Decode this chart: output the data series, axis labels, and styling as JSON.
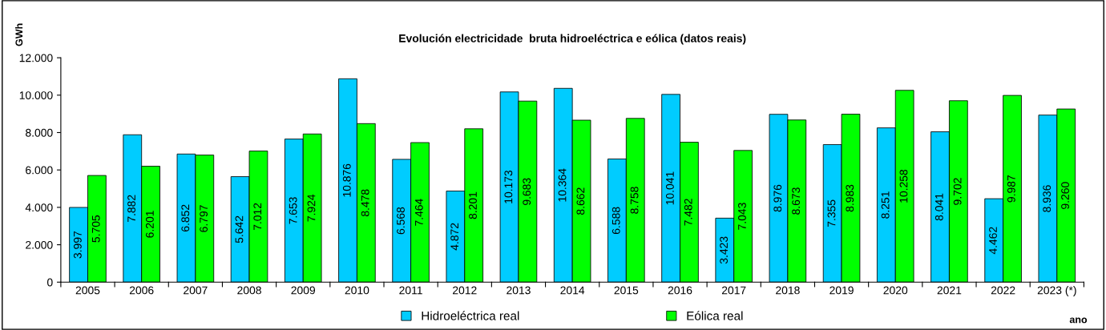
{
  "chart_data": {
    "type": "bar",
    "title": "Evolución electricidade  bruta hidroeléctrica e eólica (datos reais)",
    "xlabel": "ano",
    "ylabel": "GWh",
    "categories": [
      "2005",
      "2006",
      "2007",
      "2008",
      "2009",
      "2010",
      "2011",
      "2012",
      "2013",
      "2014",
      "2015",
      "2016",
      "2017",
      "2018",
      "2019",
      "2020",
      "2021",
      "2022",
      "2023 (*)"
    ],
    "series": [
      {
        "name": "Hidroeléctrica real",
        "color": "#00ccff",
        "values": [
          3997,
          7882,
          6852,
          5642,
          7653,
          10876,
          6568,
          4872,
          10173,
          10364,
          6588,
          10041,
          3423,
          8976,
          7355,
          8251,
          8041,
          4462,
          8936
        ],
        "value_labels": [
          "3.997",
          "7.882",
          "6.852",
          "5.642",
          "7.653",
          "10.876",
          "6.568",
          "4.872",
          "10.173",
          "10.364",
          "6.588",
          "10.041",
          "3.423",
          "8.976",
          "7.355",
          "8.251",
          "8.041",
          "4.462",
          "8.936"
        ]
      },
      {
        "name": "Eólica real",
        "color": "#00ff00",
        "values": [
          5705,
          6201,
          6797,
          7012,
          7924,
          8478,
          7464,
          8201,
          9683,
          8662,
          8758,
          7482,
          7043,
          8673,
          8983,
          10258,
          9702,
          9987,
          9260
        ],
        "value_labels": [
          "5.705",
          "6.201",
          "6.797",
          "7.012",
          "7.924",
          "8.478",
          "7.464",
          "8.201",
          "9.683",
          "8.662",
          "8.758",
          "7.482",
          "7.043",
          "8.673",
          "8.983",
          "10.258",
          "9.702",
          "9.987",
          "9.260"
        ]
      }
    ],
    "ylim": [
      0,
      12000
    ],
    "yticks": [
      0,
      {
        "value": 2000,
        "label": "2.000"
      },
      {
        "value": 4000,
        "label": "4.000"
      },
      {
        "value": 6000,
        "label": "6.000"
      },
      {
        "value": 8000,
        "label": "8.000"
      },
      {
        "value": 10000,
        "label": "10.000"
      },
      {
        "value": 12000,
        "label": "12.000"
      }
    ],
    "grid": false,
    "legend": "bottom"
  }
}
